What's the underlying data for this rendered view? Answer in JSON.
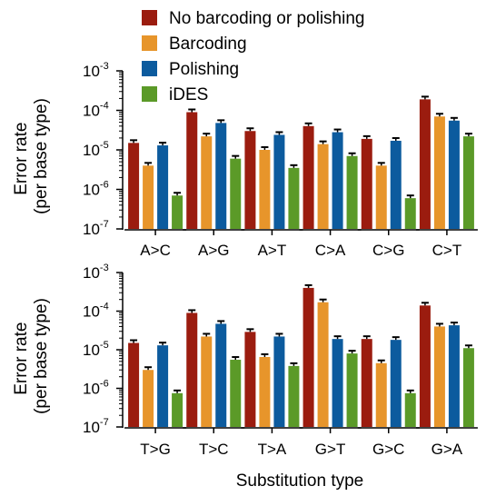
{
  "chart_data": {
    "type": "bar",
    "log_scale_y": true,
    "ylim": [
      1e-07,
      0.001
    ],
    "yticks": [
      {
        "base": "10",
        "exp": "-3",
        "value": 0.001
      },
      {
        "base": "10",
        "exp": "-4",
        "value": 0.0001
      },
      {
        "base": "10",
        "exp": "-5",
        "value": 1e-05
      },
      {
        "base": "10",
        "exp": "-6",
        "value": 1e-06
      },
      {
        "base": "10",
        "exp": "-7",
        "value": 1e-07
      }
    ],
    "ylabel_line1": "Error rate",
    "ylabel_line2": "(per base type)",
    "xlabel": "Substitution type",
    "legend": {
      "placement": "top",
      "entries": [
        "No barcoding or polishing",
        "Barcoding",
        "Polishing",
        "iDES"
      ]
    },
    "colors": [
      "#9b1c0f",
      "#e7952b",
      "#0c5b9e",
      "#5b9a28"
    ],
    "panels": [
      {
        "categories": [
          "A>C",
          "A>G",
          "A>T",
          "C>A",
          "C>G",
          "C>T"
        ],
        "series": [
          {
            "name": "No barcoding or polishing",
            "values": [
              1.5e-05,
              9e-05,
              3e-05,
              4e-05,
              1.9e-05,
              0.00019
            ]
          },
          {
            "name": "Barcoding",
            "values": [
              4e-06,
              2.2e-05,
              1e-05,
              1.4e-05,
              4e-06,
              7e-05
            ]
          },
          {
            "name": "Polishing",
            "values": [
              1.3e-05,
              4.8e-05,
              2.4e-05,
              2.8e-05,
              1.7e-05,
              5.5e-05
            ]
          },
          {
            "name": "iDES",
            "values": [
              7e-07,
              6e-06,
              3.5e-06,
              7e-06,
              6e-07,
              2.2e-05
            ]
          }
        ]
      },
      {
        "categories": [
          "T>G",
          "T>C",
          "T>A",
          "G>T",
          "G>C",
          "G>A"
        ],
        "series": [
          {
            "name": "No barcoding or polishing",
            "values": [
              1.5e-05,
              9e-05,
              2.9e-05,
              0.0004,
              1.9e-05,
              0.00014
            ]
          },
          {
            "name": "Barcoding",
            "values": [
              3e-06,
              2.2e-05,
              6.5e-06,
              0.00017,
              4.5e-06,
              4e-05
            ]
          },
          {
            "name": "Polishing",
            "values": [
              1.3e-05,
              4.7e-05,
              2.2e-05,
              1.9e-05,
              1.8e-05,
              4.3e-05
            ]
          },
          {
            "name": "iDES",
            "values": [
              7.5e-07,
              5.5e-06,
              3.8e-06,
              8e-06,
              7.5e-07,
              1.1e-05
            ]
          }
        ]
      }
    ]
  }
}
